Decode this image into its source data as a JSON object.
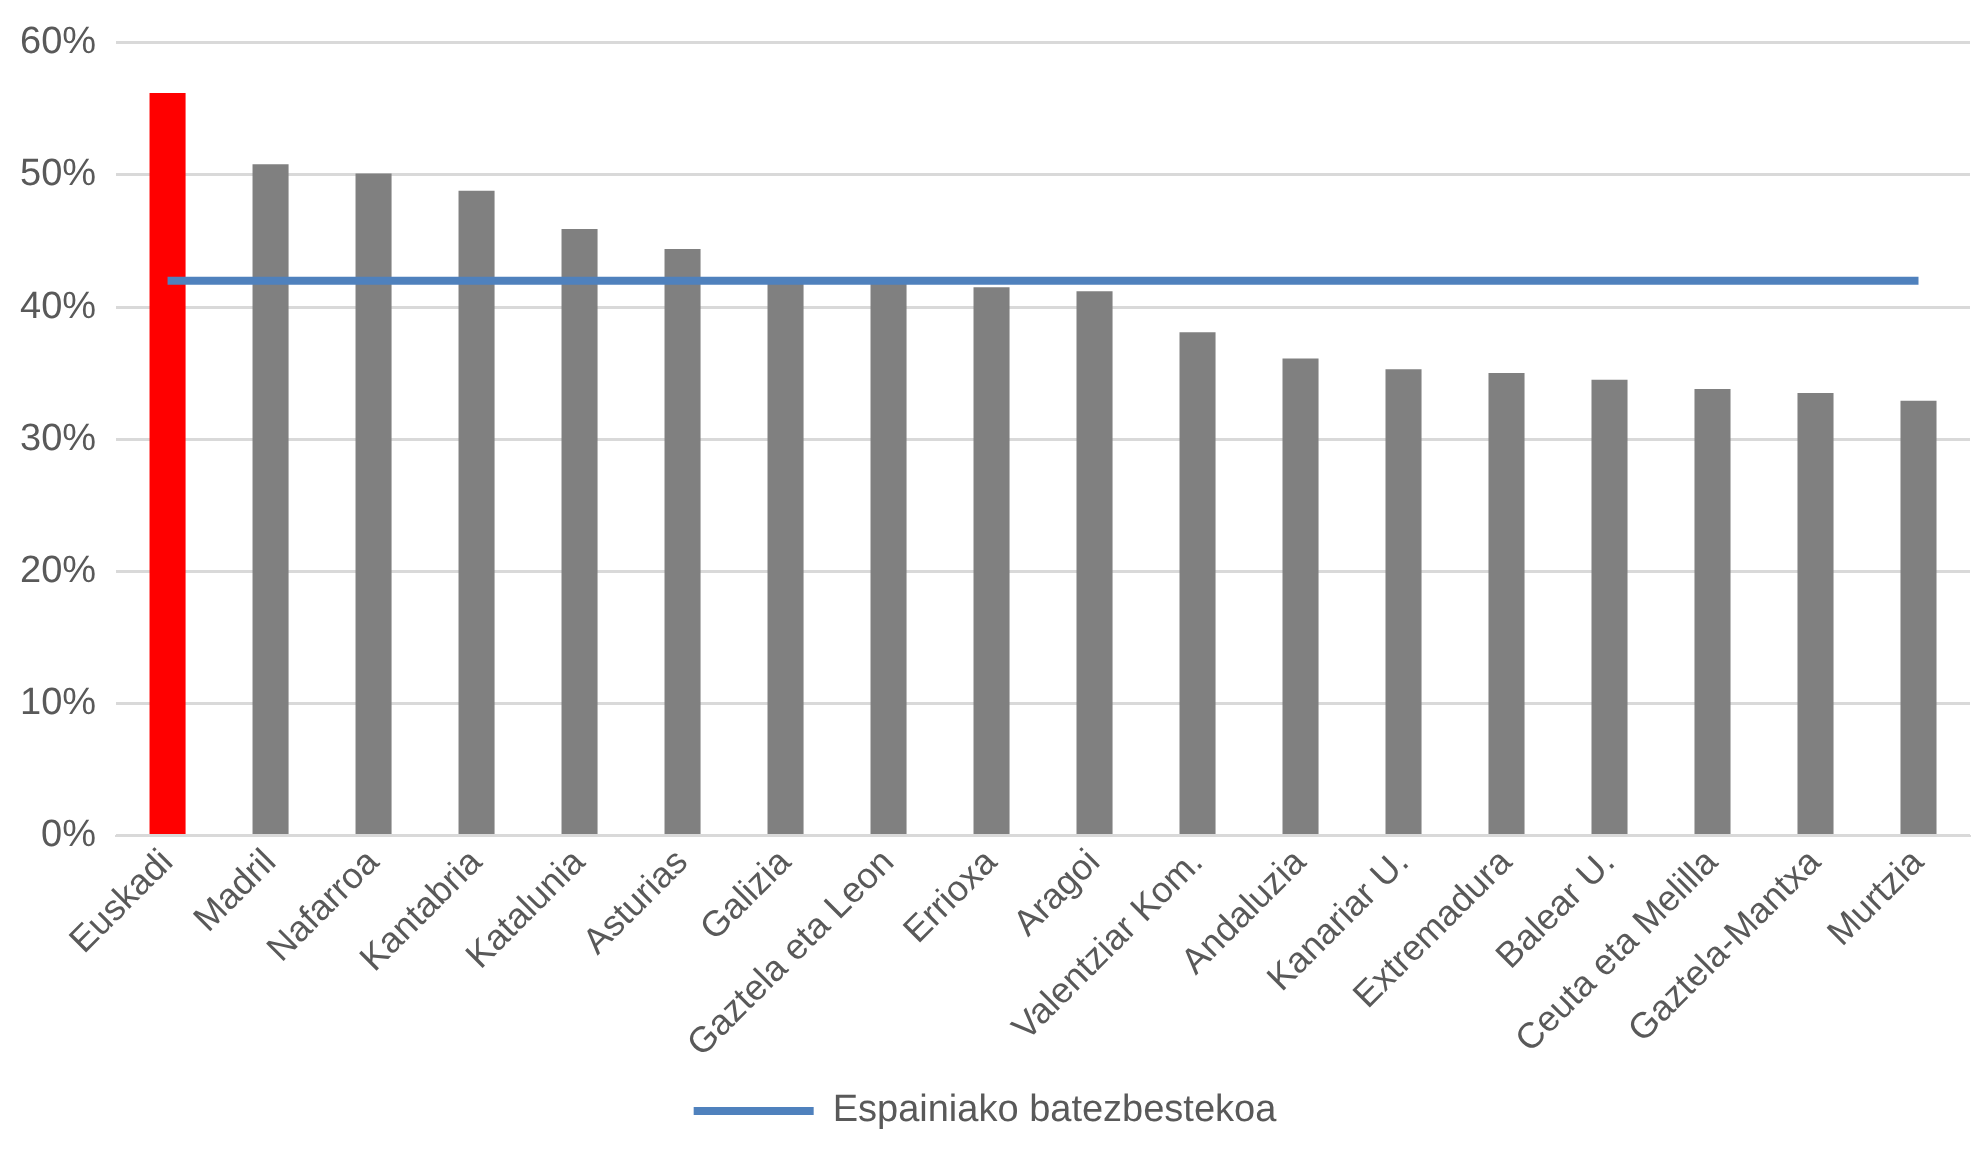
{
  "chart_data": {
    "type": "bar",
    "categories": [
      "Euskadi",
      "Madril",
      "Nafarroa",
      "Kantabria",
      "Katalunia",
      "Asturias",
      "Galizia",
      "Gaztela eta Leon",
      "Errioxa",
      "Aragoi",
      "Valentziar Kom.",
      "Andaluzia",
      "Kanariar U.",
      "Extremadura",
      "Balear U.",
      "Ceuta eta Melilla",
      "Gaztela-Mantxa",
      "Murtzia"
    ],
    "series": [
      {
        "colors": [
          "#ff0000",
          "#808080",
          "#808080",
          "#808080",
          "#808080",
          "#808080",
          "#808080",
          "#808080",
          "#808080",
          "#808080",
          "#808080",
          "#808080",
          "#808080",
          "#808080",
          "#808080",
          "#808080",
          "#808080",
          "#808080"
        ],
        "values": [
          56.2,
          50.8,
          50.1,
          48.8,
          45.9,
          44.4,
          42.1,
          42,
          41.5,
          41.2,
          38.1,
          36.1,
          35.3,
          35,
          34.5,
          33.8,
          33.5,
          32.9
        ]
      },
      {
        "type": "line",
        "name": "Espainiako batezbestekoa",
        "color": "#4f81bd",
        "marker": "none",
        "values": [
          42,
          42,
          42,
          42,
          42,
          42,
          42,
          42,
          42,
          42,
          42,
          42,
          42,
          42,
          42,
          42,
          42,
          42
        ]
      }
    ],
    "ylim": [
      0,
      60
    ],
    "yticks": [
      {
        "value": 0,
        "label": "0%"
      },
      {
        "value": 10,
        "label": "10%"
      },
      {
        "value": 20,
        "label": "20%"
      },
      {
        "value": 30,
        "label": "30%"
      },
      {
        "value": 40,
        "label": "40%"
      },
      {
        "value": 50,
        "label": "50%"
      },
      {
        "value": 60,
        "label": "60%"
      }
    ],
    "grid": "y",
    "legend": "bottom"
  }
}
